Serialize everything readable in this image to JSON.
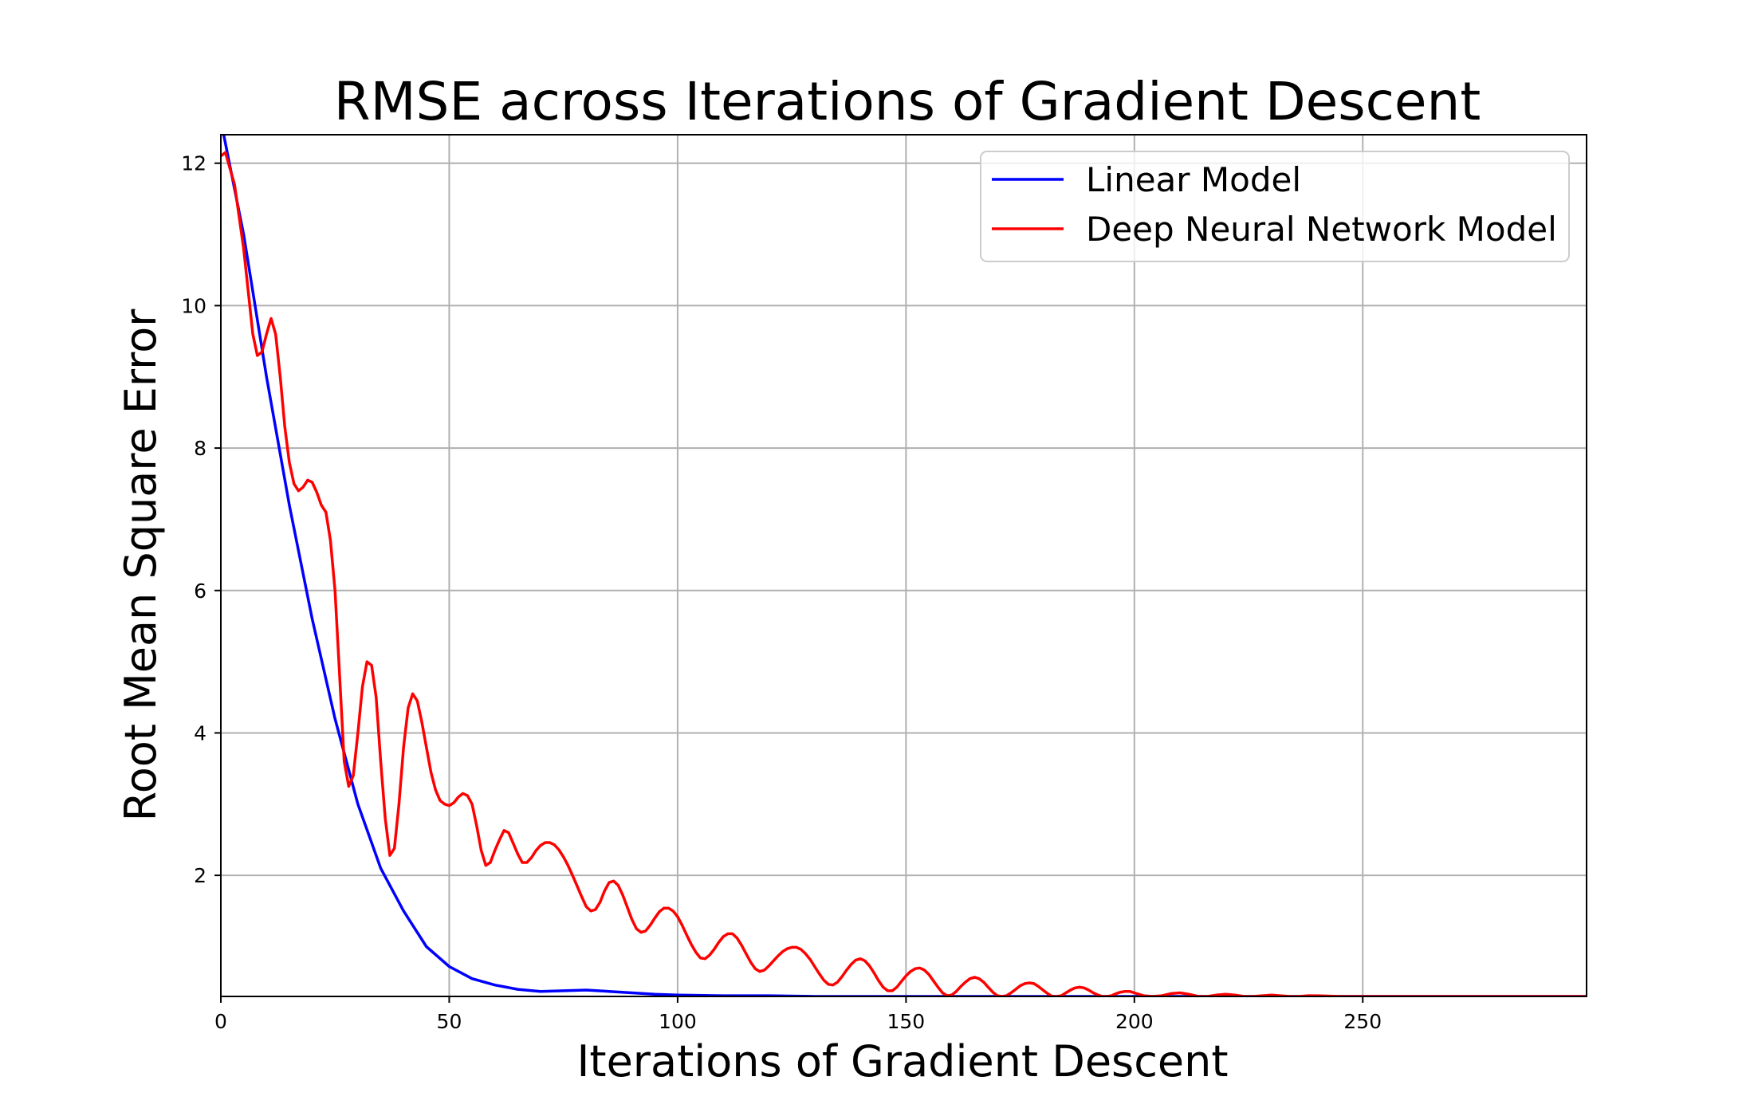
{
  "chart_data": {
    "type": "line",
    "title": "RMSE across Iterations of Gradient Descent",
    "xlabel": "Iterations of Gradient Descent",
    "ylabel": "Root Mean Square Error",
    "xlim": [
      0,
      299
    ],
    "ylim": [
      0.3,
      12.4
    ],
    "xticks": [
      0,
      50,
      100,
      150,
      200,
      250
    ],
    "yticks": [
      2,
      4,
      6,
      8,
      10,
      12
    ],
    "grid": true,
    "legend_position": "top-right",
    "series": [
      {
        "name": "Linear Model",
        "color": "#0000ff",
        "x": [
          0,
          5,
          10,
          15,
          20,
          25,
          30,
          35,
          40,
          45,
          50,
          55,
          60,
          65,
          70,
          75,
          80,
          85,
          90,
          95,
          100,
          110,
          120,
          130,
          140,
          150,
          175,
          200,
          225,
          250,
          275,
          299
        ],
        "y": [
          12.6,
          11.0,
          9.0,
          7.2,
          5.6,
          4.2,
          3.0,
          2.1,
          1.5,
          1.0,
          0.72,
          0.55,
          0.46,
          0.4,
          0.37,
          0.38,
          0.39,
          0.37,
          0.35,
          0.33,
          0.32,
          0.31,
          0.31,
          0.3,
          0.3,
          0.3,
          0.3,
          0.3,
          0.3,
          0.3,
          0.3,
          0.3
        ]
      },
      {
        "name": "Deep Neural Network Model",
        "color": "#ff0000",
        "x": [
          0,
          1,
          3,
          5,
          7,
          8,
          9,
          10,
          11,
          12,
          13,
          14,
          15,
          16,
          17,
          18,
          19,
          20,
          21,
          22,
          23,
          24,
          25,
          26,
          27,
          28,
          29,
          30,
          31,
          32,
          33,
          34,
          35,
          36,
          37,
          38,
          39,
          40,
          41,
          42,
          43,
          44,
          45,
          46,
          47,
          48,
          49,
          50,
          51,
          52,
          53,
          54,
          55,
          56,
          57,
          58,
          59,
          60,
          61,
          62,
          63,
          64,
          65,
          66,
          67,
          68,
          69,
          70,
          71,
          72,
          73,
          74,
          75,
          76,
          77,
          78,
          79,
          80,
          81,
          82,
          83,
          84,
          85,
          86,
          87,
          88,
          89,
          90,
          91,
          92,
          93,
          94,
          95,
          96,
          97,
          98,
          99,
          100,
          101,
          102,
          103,
          104,
          105,
          106,
          107,
          108,
          109,
          110,
          111,
          112,
          113,
          114,
          115,
          116,
          117,
          118,
          119,
          120,
          121,
          122,
          123,
          124,
          125,
          126,
          127,
          128,
          129,
          130,
          131,
          132,
          133,
          134,
          135,
          136,
          137,
          138,
          139,
          140,
          141,
          142,
          143,
          144,
          145,
          146,
          147,
          148,
          149,
          150,
          151,
          152,
          153,
          154,
          155,
          156,
          157,
          158,
          159,
          160,
          161,
          162,
          163,
          164,
          165,
          166,
          167,
          168,
          169,
          170,
          171,
          172,
          173,
          174,
          175,
          176,
          177,
          178,
          179,
          180,
          181,
          182,
          183,
          184,
          185,
          186,
          187,
          188,
          189,
          190,
          191,
          192,
          193,
          194,
          195,
          196,
          197,
          198,
          199,
          200,
          202,
          204,
          206,
          208,
          210,
          212,
          214,
          216,
          218,
          220,
          222,
          224,
          226,
          228,
          230,
          232,
          234,
          236,
          238,
          240,
          245,
          250,
          255,
          260,
          270,
          280,
          290,
          299
        ],
        "y": [
          12.1,
          12.15,
          11.7,
          10.8,
          9.6,
          9.3,
          9.35,
          9.6,
          9.82,
          9.6,
          9.0,
          8.3,
          7.8,
          7.5,
          7.4,
          7.45,
          7.55,
          7.52,
          7.38,
          7.2,
          7.1,
          6.7,
          6.0,
          4.8,
          3.6,
          3.25,
          3.4,
          4.0,
          4.65,
          5.0,
          4.95,
          4.5,
          3.6,
          2.8,
          2.28,
          2.38,
          3.0,
          3.8,
          4.35,
          4.55,
          4.45,
          4.15,
          3.8,
          3.45,
          3.2,
          3.05,
          3.0,
          2.98,
          3.02,
          3.1,
          3.15,
          3.12,
          3.0,
          2.7,
          2.35,
          2.14,
          2.18,
          2.35,
          2.5,
          2.63,
          2.6,
          2.45,
          2.3,
          2.18,
          2.18,
          2.25,
          2.35,
          2.42,
          2.46,
          2.46,
          2.43,
          2.36,
          2.26,
          2.14,
          2.0,
          1.85,
          1.7,
          1.56,
          1.5,
          1.52,
          1.62,
          1.78,
          1.9,
          1.92,
          1.86,
          1.72,
          1.55,
          1.38,
          1.25,
          1.2,
          1.22,
          1.3,
          1.4,
          1.49,
          1.54,
          1.54,
          1.5,
          1.42,
          1.3,
          1.16,
          1.03,
          0.92,
          0.84,
          0.83,
          0.88,
          0.96,
          1.06,
          1.14,
          1.18,
          1.18,
          1.12,
          1.02,
          0.9,
          0.78,
          0.69,
          0.65,
          0.67,
          0.73,
          0.8,
          0.87,
          0.93,
          0.97,
          0.99,
          0.99,
          0.96,
          0.9,
          0.82,
          0.72,
          0.62,
          0.53,
          0.47,
          0.46,
          0.5,
          0.58,
          0.67,
          0.75,
          0.81,
          0.83,
          0.8,
          0.73,
          0.63,
          0.52,
          0.43,
          0.38,
          0.38,
          0.43,
          0.51,
          0.59,
          0.65,
          0.69,
          0.7,
          0.67,
          0.61,
          0.52,
          0.43,
          0.35,
          0.31,
          0.32,
          0.37,
          0.44,
          0.5,
          0.55,
          0.57,
          0.55,
          0.5,
          0.43,
          0.36,
          0.31,
          0.3,
          0.31,
          0.35,
          0.4,
          0.45,
          0.48,
          0.49,
          0.48,
          0.44,
          0.39,
          0.34,
          0.3,
          0.3,
          0.31,
          0.35,
          0.39,
          0.42,
          0.43,
          0.42,
          0.39,
          0.35,
          0.32,
          0.3,
          0.3,
          0.31,
          0.34,
          0.36,
          0.37,
          0.37,
          0.35,
          0.31,
          0.3,
          0.31,
          0.34,
          0.35,
          0.33,
          0.3,
          0.3,
          0.32,
          0.33,
          0.32,
          0.3,
          0.3,
          0.31,
          0.32,
          0.31,
          0.3,
          0.3,
          0.31,
          0.31,
          0.3,
          0.3,
          0.3,
          0.3,
          0.3,
          0.3,
          0.3,
          0.3
        ]
      }
    ]
  }
}
